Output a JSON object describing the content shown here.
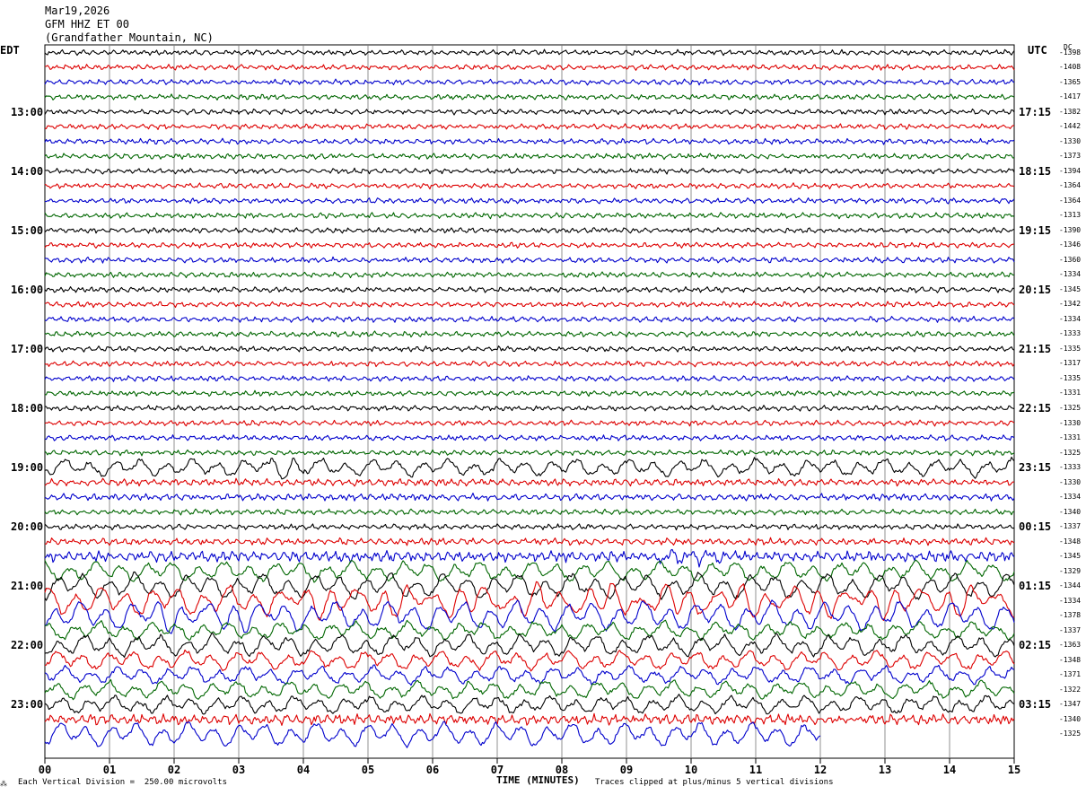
{
  "header": {
    "date": "Mar19,2026",
    "station": "GFM HHZ ET 00",
    "location": "(Grandfather Mountain, NC)"
  },
  "axes": {
    "left_zone": "EDT",
    "right_zone": "UTC",
    "dc_label": "DC",
    "xlabel": "TIME (MINUTES)"
  },
  "footer": {
    "scale_note": "Each Vertical Division =  250.00 microvolts",
    "clip_note": "Traces clipped at plus/minus 5 vertical divisions"
  },
  "colors": {
    "trace_cycle": [
      "#000000",
      "#dd0000",
      "#0000cc",
      "#006600"
    ],
    "grid": "#777777"
  },
  "chart_data": {
    "type": "line",
    "title": "GFM HHZ ET 00",
    "xlabel": "TIME (MINUTES)",
    "x_ticks": [
      "00",
      "01",
      "02",
      "03",
      "04",
      "05",
      "06",
      "07",
      "08",
      "09",
      "10",
      "11",
      "12",
      "13",
      "14",
      "15"
    ],
    "xlim": [
      0,
      15
    ],
    "minutes_per_trace": 15,
    "left_hour_labels": [
      "13:00",
      "14:00",
      "15:00",
      "16:00",
      "17:00",
      "18:00",
      "19:00",
      "20:00",
      "21:00",
      "22:00",
      "23:00"
    ],
    "right_hour_labels": [
      "17:15",
      "18:15",
      "19:15",
      "20:15",
      "21:15",
      "22:15",
      "23:15",
      "00:15",
      "01:15",
      "02:15",
      "03:15"
    ],
    "dc_offsets": [
      -1398,
      -1408,
      -1365,
      -1417,
      -1382,
      -1442,
      -1330,
      -1373,
      -1394,
      -1364,
      -1364,
      -1313,
      -1390,
      -1346,
      -1360,
      -1334,
      -1345,
      -1342,
      -1334,
      -1333,
      -1335,
      -1317,
      -1335,
      -1331,
      -1325,
      -1330,
      -1331,
      -1325,
      -1333,
      -1330,
      -1334,
      -1340,
      -1337,
      -1348,
      -1345,
      -1329,
      -1344,
      -1334,
      -1378,
      -1337,
      -1363,
      -1348,
      -1371,
      -1322,
      -1347,
      -1340,
      -1325
    ],
    "trace_amplitude": [
      1.0,
      1.0,
      1.0,
      1.0,
      1.0,
      1.0,
      1.0,
      1.0,
      1.0,
      1.0,
      1.0,
      1.0,
      1.0,
      1.0,
      1.0,
      1.0,
      1.0,
      1.0,
      1.0,
      1.0,
      1.0,
      1.0,
      1.0,
      1.0,
      1.0,
      1.0,
      1.0,
      1.0,
      2.6,
      1.3,
      1.3,
      1.0,
      1.0,
      1.3,
      2.0,
      3.0,
      3.8,
      4.5,
      4.5,
      2.6,
      3.2,
      2.8,
      2.6,
      2.6,
      2.6,
      2.0,
      3.6
    ],
    "partial_trace_end_minute": 12,
    "events": [
      {
        "trace": 28,
        "from_minute": 3.5,
        "to_minute": 4.0
      },
      {
        "trace": 34,
        "from_minute": 9.5,
        "to_minute": 10.5
      },
      {
        "trace": 37,
        "from_minute": 3.5,
        "to_minute": 15.0
      },
      {
        "trace": 38,
        "from_minute": 1.5,
        "to_minute": 3.5
      }
    ],
    "grid": true
  }
}
